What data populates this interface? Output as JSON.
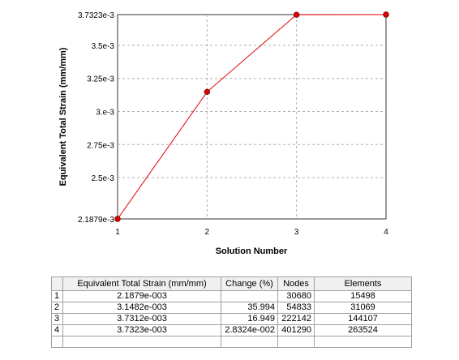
{
  "chart_data": {
    "type": "line",
    "xlabel": "Solution Number",
    "ylabel": "Equivalent Total Strain  (mm/mm)",
    "x": [
      1,
      2,
      3,
      4
    ],
    "x_ticks": [
      "1",
      "2",
      "3",
      "4"
    ],
    "xlim": [
      1,
      4
    ],
    "ylim": [
      0.0021879,
      0.0037323
    ],
    "y_ticks": [
      {
        "value": 0.0021879,
        "label": "2.1879e-3"
      },
      {
        "value": 0.0025,
        "label": "2.5e-3"
      },
      {
        "value": 0.00275,
        "label": "2.75e-3"
      },
      {
        "value": 0.003,
        "label": "3.e-3"
      },
      {
        "value": 0.00325,
        "label": "3.25e-3"
      },
      {
        "value": 0.0035,
        "label": "3.5e-3"
      },
      {
        "value": 0.0037323,
        "label": "3.7323e-3"
      }
    ],
    "series": [
      {
        "values": [
          0.0021879,
          0.0031482,
          0.0037312,
          0.0037323
        ],
        "color": "#e00000"
      }
    ],
    "grid": true
  },
  "table": {
    "columns": [
      "",
      "Equivalent Total Strain (mm/mm)",
      "Change (%)",
      "Nodes",
      "Elements"
    ],
    "rows": [
      [
        "1",
        "2.1879e-003",
        "",
        "30680",
        "15498"
      ],
      [
        "2",
        "3.1482e-003",
        "35.994",
        "54833",
        "31069"
      ],
      [
        "3",
        "3.7312e-003",
        "16.949",
        "222142",
        "144107"
      ],
      [
        "4",
        "3.7323e-003",
        "2.8324e-002",
        "401290",
        "263524"
      ]
    ]
  }
}
